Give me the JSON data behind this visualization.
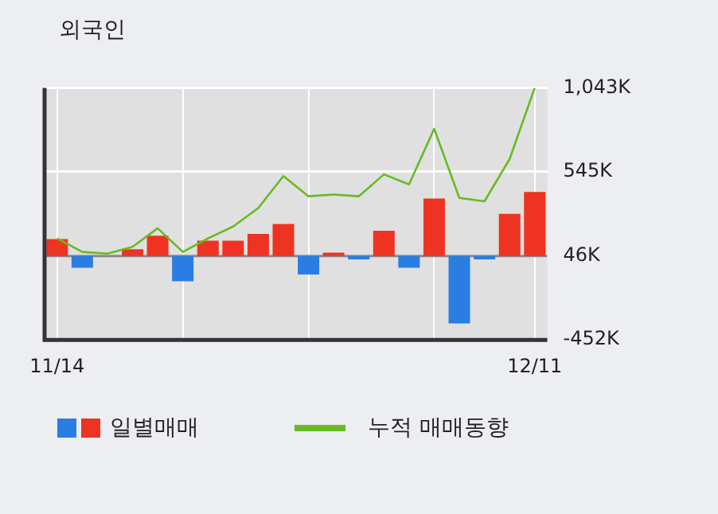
{
  "chart_data": {
    "type": "bar",
    "title": "외국인",
    "categories": [
      "11/14",
      null,
      null,
      null,
      null,
      null,
      null,
      null,
      null,
      null,
      null,
      null,
      null,
      null,
      null,
      null,
      null,
      null,
      null,
      "12/11"
    ],
    "series": [
      {
        "name": "일별매매",
        "values": [
          100,
          -70,
          null,
          40,
          120,
          -150,
          90,
          90,
          130,
          190,
          -110,
          20,
          -20,
          150,
          -70,
          340,
          -400,
          -20,
          250,
          380
        ],
        "base": [
          46,
          46,
          null,
          46,
          46,
          46,
          46,
          46,
          46,
          46,
          46,
          46,
          46,
          46,
          46,
          46,
          46,
          46,
          46,
          46
        ],
        "colors": [
          "#ee3322",
          "#2a7de1",
          "#ee3322",
          "#ee3322",
          "#ee3322",
          "#2a7de1",
          "#ee3322",
          "#ee3322",
          "#ee3322",
          "#ee3322",
          "#2a7de1",
          "#ee3322",
          "#2a7de1",
          "#ee3322",
          "#2a7de1",
          "#ee3322",
          "#2a7de1",
          "#2a7de1",
          "#ee3322",
          "#ee3322"
        ]
      },
      {
        "name": "누적 매매동향",
        "type": "line",
        "color": "#66bb22",
        "values": [
          150,
          70,
          60,
          100,
          210,
          70,
          150,
          220,
          330,
          520,
          400,
          410,
          400,
          530,
          470,
          800,
          390,
          370,
          620,
          1043
        ]
      }
    ],
    "ylim": [
      -452,
      1043
    ],
    "yticks": [
      {
        "value": 1043,
        "label": "1,043K"
      },
      {
        "value": 545,
        "label": "545K"
      },
      {
        "value": 46,
        "label": "46K"
      },
      {
        "value": -452,
        "label": "-452K"
      }
    ],
    "ref_lines": [
      {
        "axis": "y",
        "value": 46,
        "color": "#888888"
      }
    ],
    "grid": true,
    "legend": "bottom",
    "marker": "none"
  }
}
